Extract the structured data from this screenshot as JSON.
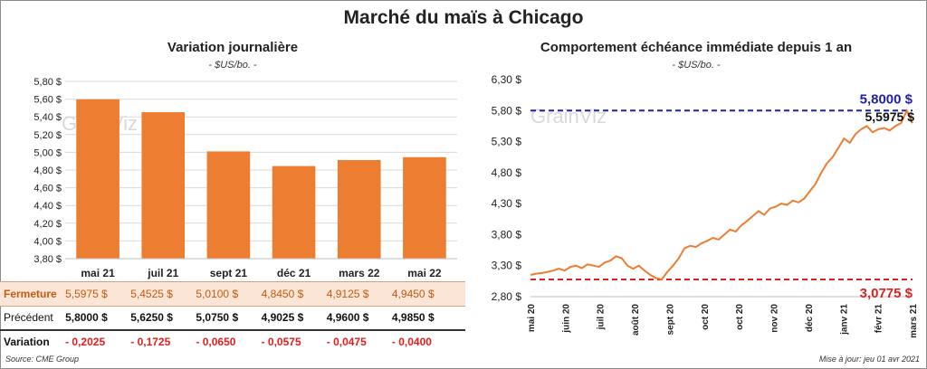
{
  "title": "Marché du maïs à Chicago",
  "left": {
    "subtitle": "Variation  journalière",
    "unit": "- $US/bo. -",
    "watermark": "GrainViz"
  },
  "right": {
    "subtitle": "Comportement  échéance immédiate depuis 1 an",
    "unit": "- $US/bo. -",
    "watermark": "GrainViz",
    "max_label": "5,8000 $",
    "min_label": "3,0775 $",
    "last_label": "5,5975 $"
  },
  "table": {
    "rows": [
      {
        "label": "Fermeture",
        "values": [
          "5,5975  $",
          "5,4525  $",
          "5,0100  $",
          "4,8450  $",
          "4,9125  $",
          "4,9450  $"
        ]
      },
      {
        "label": "Précédent",
        "values": [
          "5,8000  $",
          "5,6250  $",
          "5,0750  $",
          "4,9025  $",
          "4,9600  $",
          "4,9850  $"
        ]
      },
      {
        "label": "Variation",
        "values": [
          "- 0,2025",
          "- 0,1725",
          "- 0,0650",
          "- 0,0575",
          "- 0,0475",
          "- 0,0400"
        ]
      }
    ]
  },
  "footer": {
    "source": "Source: CME Group",
    "updated": "Mise à jour: jeu 01 avr 2021"
  },
  "colors": {
    "bar": "#ed7d31",
    "line": "#ed7d31",
    "max_line": "#1f1fa8",
    "min_line": "#e02020",
    "negative": "#e02020",
    "fermeture_bg": "#fbe5d6",
    "grid": "#d9d9d9"
  },
  "chart_data": [
    {
      "type": "bar",
      "categories": [
        "mai 21",
        "juil 21",
        "sept 21",
        "déc 21",
        "mars 22",
        "mai 22"
      ],
      "values": [
        5.5975,
        5.4525,
        5.01,
        4.845,
        4.9125,
        4.945
      ],
      "ylim": [
        3.8,
        5.8
      ],
      "yticks": [
        "3,80 $",
        "4,00 $",
        "4,20 $",
        "4,40 $",
        "4,60 $",
        "4,80 $",
        "5,00 $",
        "5,20 $",
        "5,40 $",
        "5,60 $",
        "5,80 $"
      ],
      "grid": true
    },
    {
      "type": "line",
      "ylim": [
        2.8,
        6.3
      ],
      "yticks": [
        "2,80 $",
        "3,30 $",
        "3,80 $",
        "4,30 $",
        "4,80 $",
        "5,30 $",
        "5,80 $",
        "6,30 $"
      ],
      "xticks": [
        "mai 20",
        "juin 20",
        "juil 20",
        "août 20",
        "sept 20",
        "oct 20",
        "oct 20",
        "nov 20",
        "déc 20",
        "janv 21",
        "févr 21",
        "mars 21"
      ],
      "reference_lines": [
        5.8,
        3.0775
      ],
      "series": [
        {
          "values": [
            3.15,
            3.17,
            3.18,
            3.2,
            3.22,
            3.25,
            3.22,
            3.28,
            3.3,
            3.26,
            3.32,
            3.3,
            3.28,
            3.35,
            3.38,
            3.45,
            3.42,
            3.3,
            3.25,
            3.3,
            3.22,
            3.15,
            3.1,
            3.0775,
            3.2,
            3.3,
            3.42,
            3.58,
            3.62,
            3.6,
            3.66,
            3.7,
            3.75,
            3.72,
            3.8,
            3.88,
            3.85,
            3.95,
            4.02,
            4.1,
            4.18,
            4.12,
            4.22,
            4.25,
            4.3,
            4.28,
            4.35,
            4.32,
            4.38,
            4.5,
            4.62,
            4.8,
            4.95,
            5.05,
            5.2,
            5.35,
            5.28,
            5.42,
            5.5,
            5.55,
            5.45,
            5.5,
            5.52,
            5.48,
            5.55,
            5.6,
            5.8,
            5.5975
          ]
        }
      ],
      "grid": false
    }
  ]
}
